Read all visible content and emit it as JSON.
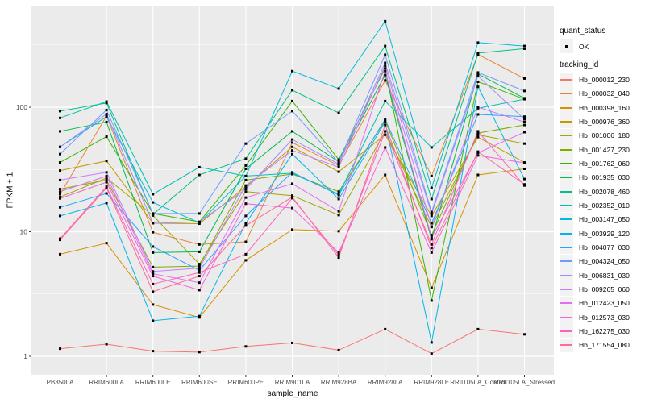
{
  "colors": {
    "figure_bg": "#FFFFFF",
    "panel_bg": "#EBEBEB",
    "grid": "#FFFFFF",
    "tick_mark": "#333333",
    "tick_label": "#4D4D4D",
    "axis_title": "#000000",
    "legend_key_bg": "#F2F2F2",
    "marker": "#000000"
  },
  "legend": {
    "quant_status_title": "quant_status",
    "quant_status_items": [
      {
        "label": "OK",
        "marker": "square-point-icon"
      }
    ],
    "tracking_id_title": "tracking_id"
  },
  "chart_data": {
    "type": "line",
    "title": "",
    "xlabel": "sample_name",
    "ylabel": "FPKM + 1",
    "y_scale": "log10",
    "y_ticks": [
      1,
      10,
      100
    ],
    "y_minor_ticks": [
      3.162,
      31.62,
      316.2
    ],
    "ylim": [
      0.71,
      650
    ],
    "grid": true,
    "legend_position": "right",
    "point_shape": "small black square (quant_status OK)",
    "categories": [
      "PB350LA",
      "RRIM600LA",
      "RRIM600LE",
      "RRIM600SE",
      "RRIM600PE",
      "RRIM901LA",
      "RRIM928BA",
      "RRIM928LA",
      "RRIM928LE",
      "RRII105LA_Control",
      "RRII105LA_Stressed"
    ],
    "series": [
      {
        "name": "Hb_000012_230",
        "color": "#F8766D",
        "values": [
          1.15,
          1.25,
          1.1,
          1.08,
          1.2,
          1.28,
          1.12,
          1.65,
          1.05,
          1.65,
          1.5
        ]
      },
      {
        "name": "Hb_000032_040",
        "color": "#EA8331",
        "values": [
          20,
          85,
          9.9,
          7.9,
          8.3,
          52,
          34,
          164,
          28,
          265,
          170
        ]
      },
      {
        "name": "Hb_000398_160",
        "color": "#D89000",
        "values": [
          6.6,
          8.1,
          2.6,
          2.05,
          5.9,
          10.4,
          10.1,
          28.6,
          3.55,
          28.6,
          32
        ]
      },
      {
        "name": "Hb_000976_360",
        "color": "#C09B00",
        "values": [
          31,
          37,
          11.7,
          11.6,
          23,
          48,
          30.3,
          60,
          13.4,
          57.5,
          36
        ]
      },
      {
        "name": "Hb_001006_180",
        "color": "#A3A500",
        "values": [
          19,
          27,
          13.5,
          5.5,
          21,
          19.5,
          13.6,
          64,
          10.9,
          60,
          51
        ]
      },
      {
        "name": "Hb_001427_230",
        "color": "#7CAE00",
        "values": [
          22,
          26,
          5.2,
          5.3,
          26,
          29,
          21,
          78,
          9.4,
          62,
          72
        ]
      },
      {
        "name": "Hb_001762_060",
        "color": "#39B600",
        "values": [
          36,
          58,
          14,
          12,
          34,
          112,
          38,
          205,
          2.8,
          160,
          116
        ]
      },
      {
        "name": "Hb_001935_030",
        "color": "#00BB4E",
        "values": [
          64,
          76,
          6.8,
          6.9,
          32,
          64,
          36.5,
          181,
          8.7,
          185,
          118
        ]
      },
      {
        "name": "Hb_002078_460",
        "color": "#00C087",
        "values": [
          93,
          108,
          13.8,
          28.6,
          38.6,
          137,
          90,
          310,
          18.3,
          272,
          295
        ]
      },
      {
        "name": "Hb_002352_010",
        "color": "#00C0B2",
        "values": [
          82,
          111,
          20,
          33,
          28,
          29.5,
          20,
          112,
          47.5,
          98,
          116
        ]
      },
      {
        "name": "Hb_003147_050",
        "color": "#00BCD8",
        "values": [
          48,
          84,
          17.2,
          11.8,
          28,
          195,
          141,
          490,
          22.5,
          330,
          310
        ]
      },
      {
        "name": "Hb_003929_120",
        "color": "#00B4EF",
        "values": [
          13.4,
          17,
          1.93,
          2.1,
          11.7,
          42,
          18.3,
          76,
          1.29,
          146,
          26.5
        ]
      },
      {
        "name": "Hb_004077_030",
        "color": "#29A3FF",
        "values": [
          15.7,
          20.3,
          7.6,
          4.9,
          13.4,
          30,
          19.7,
          80,
          11.7,
          87.5,
          84
        ]
      },
      {
        "name": "Hb_004324_050",
        "color": "#719CFF",
        "values": [
          42,
          95,
          14,
          14,
          51,
          93,
          36,
          264,
          14.4,
          190,
          135
        ]
      },
      {
        "name": "Hb_006831_030",
        "color": "#A08CFF",
        "values": [
          48,
          88,
          11.7,
          12,
          22,
          55,
          35,
          227,
          13.9,
          178,
          80
        ]
      },
      {
        "name": "Hb_009265_060",
        "color": "#C77CFF",
        "values": [
          26,
          30,
          4.8,
          5.1,
          23.5,
          45,
          33,
          215,
          11,
          100,
          76
        ]
      },
      {
        "name": "Hb_012423_050",
        "color": "#E76BF3",
        "values": [
          21,
          28,
          4.6,
          3.9,
          18.8,
          24.3,
          14.6,
          195,
          9,
          43,
          63
        ]
      },
      {
        "name": "Hb_012573_030",
        "color": "#FA62DB",
        "values": [
          18.5,
          25,
          4.4,
          3.4,
          16.8,
          15.5,
          6.8,
          47.5,
          6.8,
          41,
          35.7
        ]
      },
      {
        "name": "Hb_162275_030",
        "color": "#FF62BC",
        "values": [
          8.8,
          23,
          3.8,
          4.7,
          6.6,
          18.6,
          6.5,
          64,
          7.9,
          64,
          23.5
        ]
      },
      {
        "name": "Hb_171554_080",
        "color": "#FF6A98",
        "values": [
          8.6,
          22.5,
          3.3,
          4.4,
          11.2,
          19,
          6.2,
          72,
          7.4,
          44,
          24
        ]
      }
    ]
  }
}
